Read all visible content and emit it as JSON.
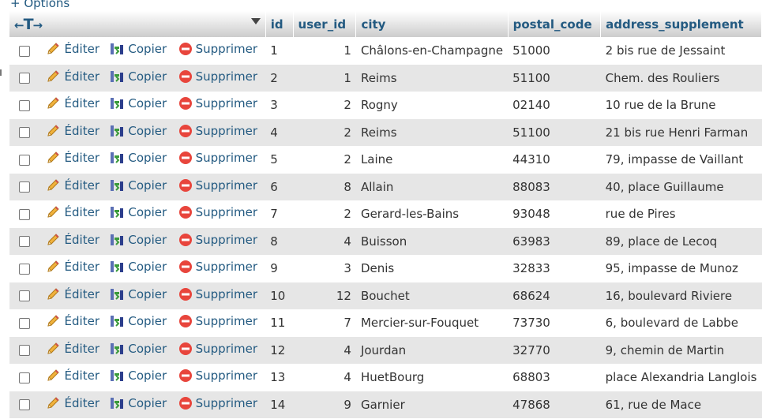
{
  "options_link": "+ Options",
  "actions": {
    "edit": "Éditer",
    "copy": "Copier",
    "delete": "Supprimer"
  },
  "columns": {
    "id": "id",
    "user_id": "user_id",
    "city": "city",
    "postal_code": "postal_code",
    "address_supplement": "address_supplement"
  },
  "rows": [
    {
      "id": "1",
      "user_id": "1",
      "city": "Châlons-en-Champagne",
      "postal_code": "51000",
      "address_supplement": "2 bis rue de Jessaint"
    },
    {
      "id": "2",
      "user_id": "1",
      "city": "Reims",
      "postal_code": "51100",
      "address_supplement": "Chem. des Rouliers"
    },
    {
      "id": "3",
      "user_id": "2",
      "city": "Rogny",
      "postal_code": "02140",
      "address_supplement": "10 rue de la Brune"
    },
    {
      "id": "4",
      "user_id": "2",
      "city": "Reims",
      "postal_code": "51100",
      "address_supplement": "21 bis rue Henri Farman"
    },
    {
      "id": "5",
      "user_id": "2",
      "city": "Laine",
      "postal_code": "44310",
      "address_supplement": "79, impasse de Vaillant"
    },
    {
      "id": "6",
      "user_id": "8",
      "city": "Allain",
      "postal_code": "88083",
      "address_supplement": "40, place Guillaume"
    },
    {
      "id": "7",
      "user_id": "2",
      "city": "Gerard-les-Bains",
      "postal_code": "93048",
      "address_supplement": "rue de Pires"
    },
    {
      "id": "8",
      "user_id": "4",
      "city": "Buisson",
      "postal_code": "63983",
      "address_supplement": "89, place de Lecoq"
    },
    {
      "id": "9",
      "user_id": "3",
      "city": "Denis",
      "postal_code": "32833",
      "address_supplement": "95, impasse de Munoz"
    },
    {
      "id": "10",
      "user_id": "12",
      "city": "Bouchet",
      "postal_code": "68624",
      "address_supplement": "16, boulevard Riviere"
    },
    {
      "id": "11",
      "user_id": "7",
      "city": "Mercier-sur-Fouquet",
      "postal_code": "73730",
      "address_supplement": "6, boulevard de Labbe"
    },
    {
      "id": "12",
      "user_id": "4",
      "city": "Jourdan",
      "postal_code": "32770",
      "address_supplement": "9, chemin de Martin"
    },
    {
      "id": "13",
      "user_id": "4",
      "city": "HuetBourg",
      "postal_code": "68803",
      "address_supplement": "place Alexandria Langlois"
    },
    {
      "id": "14",
      "user_id": "9",
      "city": "Garnier",
      "postal_code": "47868",
      "address_supplement": "61, rue de Mace"
    }
  ],
  "colors": {
    "link": "#235a81",
    "row_alt": "#e6e6e6",
    "delete_red": "#e8453c",
    "pencil": "#e8a532"
  }
}
